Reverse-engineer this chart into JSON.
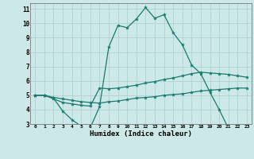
{
  "xlabel": "Humidex (Indice chaleur)",
  "bg_color": "#cce8e8",
  "line_color": "#1a7a6e",
  "grid_color": "#aacece",
  "xlim": [
    -0.5,
    23.5
  ],
  "ylim": [
    3,
    11.4
  ],
  "yticks": [
    3,
    4,
    5,
    6,
    7,
    8,
    9,
    10,
    11
  ],
  "xticks": [
    0,
    1,
    2,
    3,
    4,
    5,
    6,
    7,
    8,
    9,
    10,
    11,
    12,
    13,
    14,
    15,
    16,
    17,
    18,
    19,
    20,
    21,
    22,
    23
  ],
  "line1_x": [
    0,
    1,
    2,
    3,
    4,
    5,
    6,
    7,
    8,
    9,
    10,
    11,
    12,
    13,
    14,
    15,
    16,
    17,
    18,
    19,
    20,
    21,
    22,
    23
  ],
  "line1_y": [
    5.0,
    5.0,
    4.8,
    3.9,
    3.3,
    2.85,
    2.75,
    4.2,
    8.35,
    9.85,
    9.7,
    10.3,
    11.1,
    10.35,
    10.6,
    9.35,
    8.5,
    7.1,
    6.5,
    5.2,
    4.0,
    2.7,
    2.65,
    2.65
  ],
  "line2_x": [
    0,
    1,
    2,
    3,
    4,
    5,
    6,
    7,
    8,
    9,
    10,
    11,
    12,
    13,
    14,
    15,
    16,
    17,
    18,
    19,
    20,
    21,
    22,
    23
  ],
  "line2_y": [
    5.0,
    5.0,
    4.75,
    4.5,
    4.4,
    4.3,
    4.25,
    5.5,
    5.45,
    5.5,
    5.6,
    5.7,
    5.85,
    5.95,
    6.1,
    6.2,
    6.35,
    6.5,
    6.6,
    6.55,
    6.5,
    6.45,
    6.35,
    6.25
  ],
  "line3_x": [
    0,
    1,
    2,
    3,
    4,
    5,
    6,
    7,
    8,
    9,
    10,
    11,
    12,
    13,
    14,
    15,
    16,
    17,
    18,
    19,
    20,
    21,
    22,
    23
  ],
  "line3_y": [
    5.0,
    5.0,
    4.85,
    4.75,
    4.65,
    4.55,
    4.5,
    4.45,
    4.55,
    4.6,
    4.7,
    4.8,
    4.85,
    4.9,
    5.0,
    5.05,
    5.1,
    5.2,
    5.3,
    5.35,
    5.4,
    5.45,
    5.5,
    5.5
  ],
  "markersize": 3,
  "linewidth": 0.9
}
